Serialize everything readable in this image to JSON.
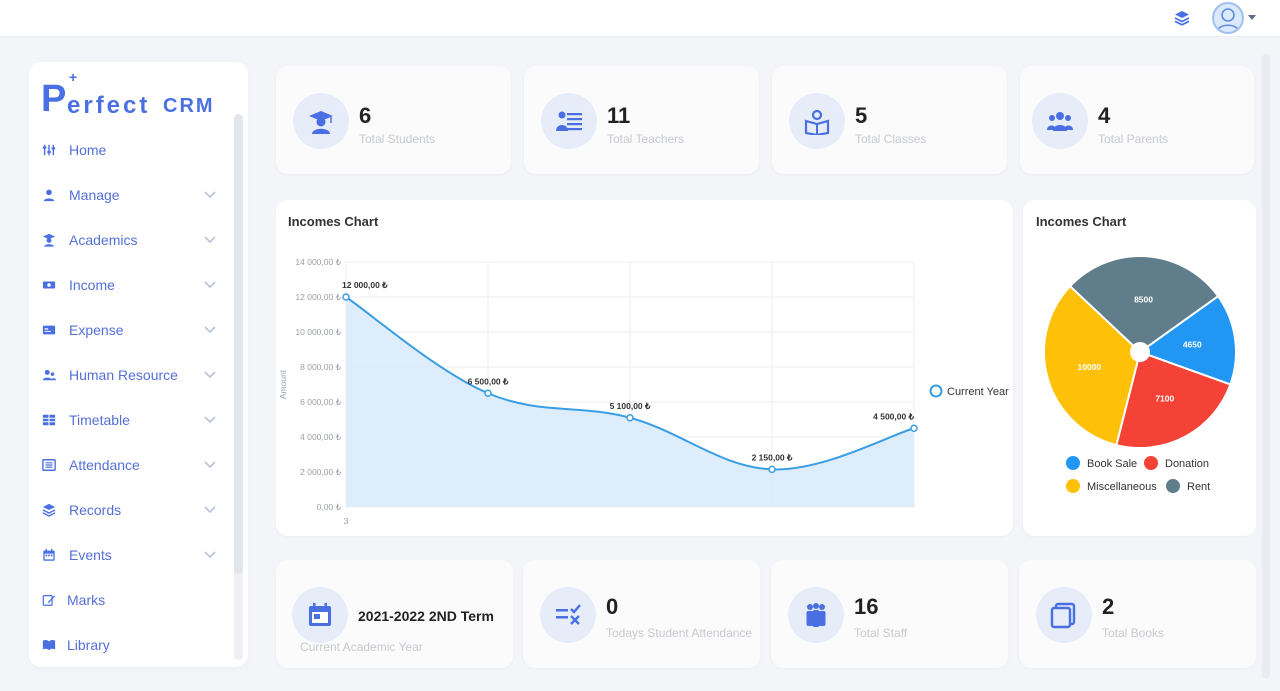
{
  "brand": {
    "plus": "+",
    "p": "P",
    "erfect": "erfect",
    "crm": "CRM"
  },
  "sidebar": {
    "items": [
      {
        "label": "Home",
        "icon": "sliders-icon",
        "has_chevron": false
      },
      {
        "label": "Manage",
        "icon": "user-icon",
        "has_chevron": true
      },
      {
        "label": "Academics",
        "icon": "graduate-icon",
        "has_chevron": true
      },
      {
        "label": "Income",
        "icon": "money-icon",
        "has_chevron": true
      },
      {
        "label": "Expense",
        "icon": "card-icon",
        "has_chevron": true
      },
      {
        "label": "Human Resource",
        "icon": "users-icon",
        "has_chevron": true
      },
      {
        "label": "Timetable",
        "icon": "table-icon",
        "has_chevron": true
      },
      {
        "label": "Attendance",
        "icon": "list-icon",
        "has_chevron": true
      },
      {
        "label": "Records",
        "icon": "layers-icon",
        "has_chevron": true
      },
      {
        "label": "Events",
        "icon": "calendar-icon",
        "has_chevron": true
      },
      {
        "label": "Marks",
        "icon": "edit-icon",
        "has_chevron": false
      },
      {
        "label": "Library",
        "icon": "book-icon",
        "has_chevron": false
      }
    ]
  },
  "stats_top": [
    {
      "value": "6",
      "label": "Total Students",
      "icon": "graduate-icon"
    },
    {
      "value": "11",
      "label": "Total Teachers",
      "icon": "teacher-icon"
    },
    {
      "value": "5",
      "label": "Total Classes",
      "icon": "class-icon"
    },
    {
      "value": "4",
      "label": "Total Parents",
      "icon": "parents-icon"
    }
  ],
  "stats_bottom": [
    {
      "value": "2021-2022 2ND Term",
      "label": "Current Academic Year",
      "icon": "calendar-icon"
    },
    {
      "value": "0",
      "label": "Todays Student Attendance",
      "icon": "checklist-icon"
    },
    {
      "value": "16",
      "label": "Total Staff",
      "icon": "staff-icon"
    },
    {
      "value": "2",
      "label": "Total Books",
      "icon": "books-icon"
    }
  ],
  "colors": {
    "accent": "#4a6fe3",
    "line": "#3a9ee4",
    "area": "#d9ebfb",
    "book_sale": "#2196f3",
    "donation": "#f44336",
    "miscellaneous": "#ffc107",
    "rent": "#607d8b"
  },
  "chart_data": [
    {
      "type": "area",
      "title": "Incomes Chart",
      "ylabel": "Amount",
      "xlabel": "",
      "x_tick_labels": [
        "3"
      ],
      "y_ticks": [
        "0,00 ₺",
        "2 000,00 ₺",
        "4 000,00 ₺",
        "6 000,00 ₺",
        "8 000,00 ₺",
        "10 000,00 ₺",
        "12 000,00 ₺",
        "14 000,00 ₺"
      ],
      "ylim": [
        0,
        14000
      ],
      "grid": true,
      "legend_position": "right",
      "series": [
        {
          "name": "Current Year",
          "values": [
            12000,
            6500,
            5100,
            2150,
            4500
          ],
          "labels": [
            "12 000,00 ₺",
            "6 500,00 ₺",
            "5 100,00 ₺",
            "2 150,00 ₺",
            "4 500,00 ₺"
          ]
        }
      ]
    },
    {
      "type": "pie",
      "title": "Incomes Chart",
      "legend_position": "bottom",
      "slices": [
        {
          "name": "Book Sale",
          "value": 4650
        },
        {
          "name": "Donation",
          "value": 7100
        },
        {
          "name": "Miscellaneous",
          "value": 10000
        },
        {
          "name": "Rent",
          "value": 8500
        }
      ]
    }
  ]
}
